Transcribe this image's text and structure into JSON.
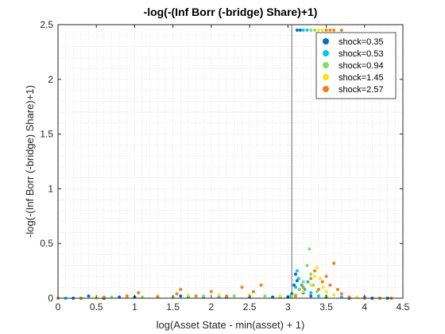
{
  "chart_data": {
    "type": "scatter",
    "title": "-log(-(Inf Borr (-bridge) Share)+1)",
    "xlabel": "log(Asset State - min(asset) + 1)",
    "ylabel": "-log(-(Inf Borr (-bridge) Share)+1)",
    "xlim": [
      0,
      4.5
    ],
    "ylim": [
      0,
      2.5
    ],
    "xticks": [
      "0",
      "0.5",
      "1",
      "1.5",
      "2",
      "2.5",
      "3",
      "3.5",
      "4",
      "4.5"
    ],
    "yticks": [
      "0",
      "0.5",
      "1",
      "1.5",
      "2",
      "2.5"
    ],
    "grid": "minor-dotted",
    "legend_position": "top-right",
    "vertical_line_x": 3.05,
    "series": [
      {
        "name": "shock=0.35",
        "color": "#0072BD",
        "points": [
          [
            0.0,
            0.0
          ],
          [
            0.2,
            0.0
          ],
          [
            0.4,
            0.02
          ],
          [
            0.6,
            0.0
          ],
          [
            0.8,
            0.01
          ],
          [
            1.0,
            0.01
          ],
          [
            1.3,
            0.02
          ],
          [
            1.6,
            0.02
          ],
          [
            1.9,
            0.01
          ],
          [
            2.2,
            0.01
          ],
          [
            2.5,
            0.01
          ],
          [
            2.8,
            0.01
          ],
          [
            3.0,
            0.01
          ],
          [
            3.05,
            0.04
          ],
          [
            3.08,
            0.12
          ],
          [
            3.1,
            0.22
          ],
          [
            3.12,
            0.16
          ],
          [
            3.15,
            0.08
          ],
          [
            3.2,
            0.05
          ],
          [
            3.3,
            0.02
          ],
          [
            3.5,
            0.01
          ],
          [
            3.8,
            0.0
          ],
          [
            4.1,
            0.0
          ],
          [
            4.3,
            0.0
          ],
          [
            3.12,
            2.45
          ],
          [
            3.16,
            2.45
          ]
        ]
      },
      {
        "name": "shock=0.53",
        "color": "#00C8F0",
        "points": [
          [
            0.1,
            0.0
          ],
          [
            0.5,
            0.0
          ],
          [
            0.9,
            0.01
          ],
          [
            1.3,
            0.01
          ],
          [
            1.7,
            0.01
          ],
          [
            2.1,
            0.01
          ],
          [
            2.5,
            0.01
          ],
          [
            2.9,
            0.01
          ],
          [
            3.04,
            0.02
          ],
          [
            3.1,
            0.1
          ],
          [
            3.12,
            0.25
          ],
          [
            3.14,
            0.18
          ],
          [
            3.18,
            0.12
          ],
          [
            3.22,
            0.08
          ],
          [
            3.26,
            0.15
          ],
          [
            3.3,
            0.05
          ],
          [
            3.4,
            0.02
          ],
          [
            3.7,
            0.01
          ],
          [
            4.0,
            0.0
          ],
          [
            3.2,
            2.45
          ],
          [
            3.25,
            2.45
          ]
        ]
      },
      {
        "name": "shock=0.94",
        "color": "#77E36A",
        "points": [
          [
            0.3,
            0.0
          ],
          [
            0.7,
            0.01
          ],
          [
            1.1,
            0.01
          ],
          [
            1.5,
            0.01
          ],
          [
            1.9,
            0.02
          ],
          [
            2.3,
            0.02
          ],
          [
            2.7,
            0.02
          ],
          [
            3.05,
            0.02
          ],
          [
            3.15,
            0.08
          ],
          [
            3.2,
            0.15
          ],
          [
            3.25,
            0.3
          ],
          [
            3.28,
            0.45
          ],
          [
            3.3,
            0.22
          ],
          [
            3.33,
            0.12
          ],
          [
            3.38,
            0.06
          ],
          [
            3.5,
            0.02
          ],
          [
            3.8,
            0.01
          ],
          [
            4.2,
            0.0
          ],
          [
            3.3,
            2.45
          ],
          [
            3.35,
            2.45
          ]
        ]
      },
      {
        "name": "shock=1.45",
        "color": "#FFE600",
        "points": [
          [
            0.5,
            0.0
          ],
          [
            0.9,
            0.01
          ],
          [
            1.3,
            0.02
          ],
          [
            1.7,
            0.03
          ],
          [
            2.1,
            0.03
          ],
          [
            2.5,
            0.03
          ],
          [
            2.9,
            0.02
          ],
          [
            3.1,
            0.03
          ],
          [
            3.2,
            0.06
          ],
          [
            3.3,
            0.12
          ],
          [
            3.35,
            0.2
          ],
          [
            3.38,
            0.28
          ],
          [
            3.42,
            0.18
          ],
          [
            3.46,
            0.1
          ],
          [
            3.5,
            0.06
          ],
          [
            3.6,
            0.03
          ],
          [
            3.9,
            0.01
          ],
          [
            4.2,
            0.0
          ],
          [
            3.4,
            2.45
          ],
          [
            3.45,
            2.45
          ]
        ]
      },
      {
        "name": "shock=2.57",
        "color": "#F57F17",
        "points": [
          [
            0.0,
            0.0
          ],
          [
            0.3,
            0.0
          ],
          [
            0.6,
            0.01
          ],
          [
            0.9,
            0.02
          ],
          [
            1.05,
            0.05
          ],
          [
            1.3,
            0.01
          ],
          [
            1.55,
            0.04
          ],
          [
            1.6,
            0.08
          ],
          [
            1.8,
            0.02
          ],
          [
            2.0,
            0.06
          ],
          [
            2.2,
            0.02
          ],
          [
            2.4,
            0.1
          ],
          [
            2.55,
            0.06
          ],
          [
            2.65,
            0.12
          ],
          [
            3.1,
            0.02
          ],
          [
            3.2,
            0.1
          ],
          [
            3.3,
            0.18
          ],
          [
            3.35,
            0.25
          ],
          [
            3.4,
            0.08
          ],
          [
            3.45,
            0.15
          ],
          [
            3.5,
            0.2
          ],
          [
            3.55,
            0.12
          ],
          [
            3.6,
            0.32
          ],
          [
            3.65,
            0.08
          ],
          [
            3.7,
            0.04
          ],
          [
            3.8,
            0.01
          ],
          [
            4.0,
            0.01
          ],
          [
            4.2,
            0.0
          ],
          [
            4.35,
            0.0
          ],
          [
            3.5,
            2.45
          ],
          [
            3.55,
            2.45
          ],
          [
            3.6,
            2.45
          ],
          [
            3.7,
            2.45
          ]
        ]
      }
    ]
  }
}
